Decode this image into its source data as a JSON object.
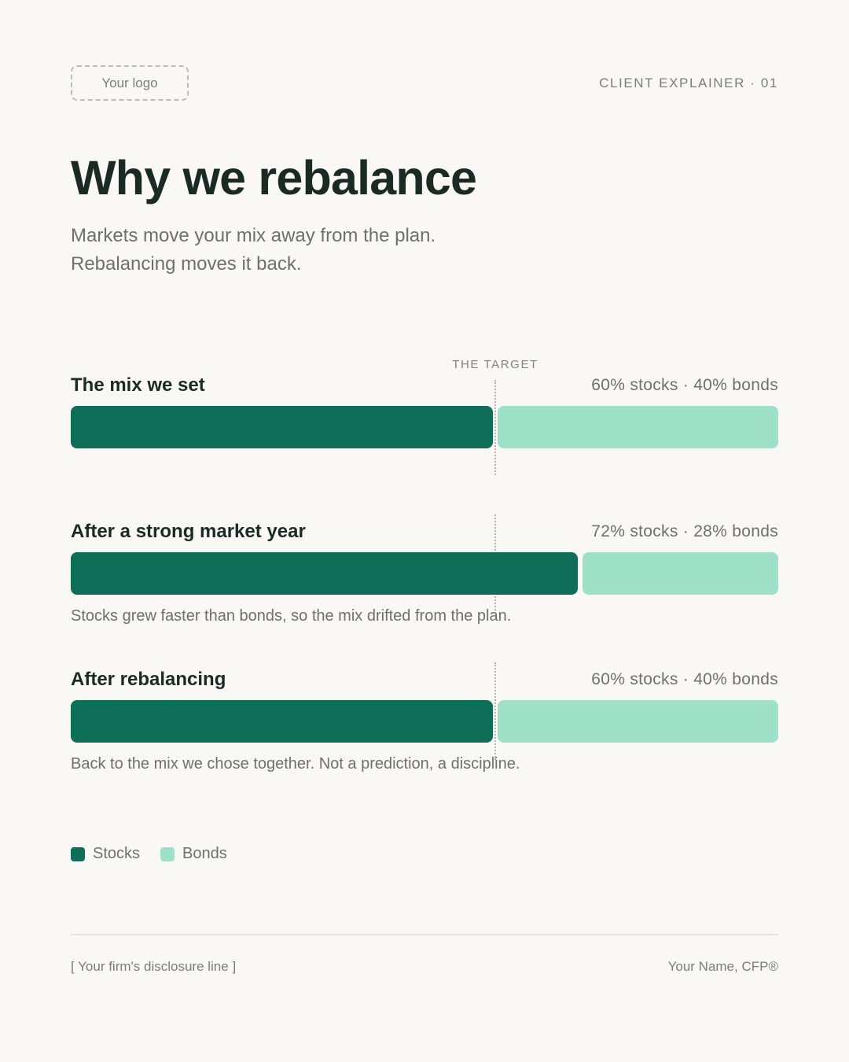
{
  "header": {
    "logo_placeholder": "Your logo",
    "kicker": "CLIENT EXPLAINER · 01"
  },
  "title": "Why we rebalance",
  "subtitle": {
    "line1": "Markets move your mix away from the plan.",
    "line2": "Rebalancing moves it back."
  },
  "colors": {
    "stocks": "#0f6e58",
    "bonds": "#9fe0c9",
    "background": "#f9f8f5"
  },
  "chart_data": {
    "type": "bar",
    "orientation": "horizontal",
    "stacked": true,
    "unit": "%",
    "xlim": [
      0,
      100
    ],
    "reference_line": {
      "label": "THE TARGET",
      "value": 60
    },
    "categories": [
      "The mix we set",
      "After a strong market year",
      "After rebalancing"
    ],
    "series": [
      {
        "name": "Stocks",
        "values": [
          60,
          72,
          60
        ]
      },
      {
        "name": "Bonds",
        "values": [
          40,
          28,
          40
        ]
      }
    ],
    "rows": [
      {
        "label": "The mix we set",
        "split_text": "60% stocks · 40% bonds",
        "stocks": 60,
        "bonds": 40,
        "note": ""
      },
      {
        "label": "After a strong market year",
        "split_text": "72% stocks · 28% bonds",
        "stocks": 72,
        "bonds": 28,
        "note": "Stocks grew faster than bonds, so the mix drifted from the plan."
      },
      {
        "label": "After rebalancing",
        "split_text": "60% stocks · 40% bonds",
        "stocks": 60,
        "bonds": 40,
        "note": "Back to the mix we chose together. Not a prediction, a discipline."
      }
    ],
    "legend": [
      "Stocks",
      "Bonds"
    ]
  },
  "footer": {
    "disclosure": "[ Your firm's disclosure line ]",
    "signature": "Your Name, CFP®"
  }
}
